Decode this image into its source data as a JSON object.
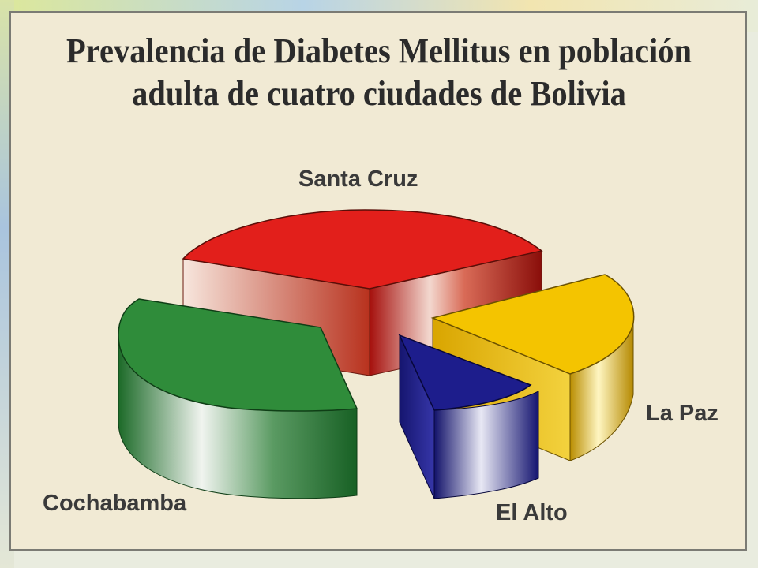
{
  "chart_data": {
    "type": "pie",
    "title_lines": [
      "Prevalencia de Diabetes Mellitus en población",
      "adulta de cuatro ciudades de Bolivia"
    ],
    "categories": [
      "Santa Cruz",
      "La Paz",
      "El Alto",
      "Cochabamba"
    ],
    "values": [
      35,
      23,
      11,
      31
    ],
    "colors": [
      "#e0201c",
      "#f2c300",
      "#1d1d8c",
      "#2f8c3a"
    ],
    "style": "3d-exploded",
    "legend": "none"
  }
}
